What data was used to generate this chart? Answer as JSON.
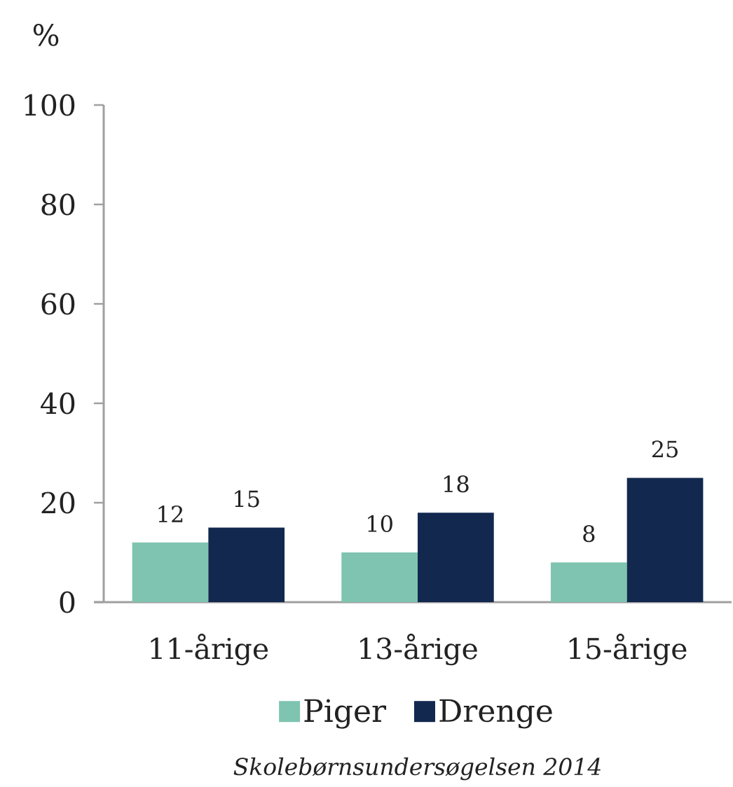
{
  "chart_data": {
    "type": "bar",
    "ylabel": "%",
    "categories": [
      "11-årige",
      "13-årige",
      "15-årige"
    ],
    "series": [
      {
        "name": "Piger",
        "color": "#7fc4b0",
        "values": [
          12,
          10,
          8
        ]
      },
      {
        "name": "Drenge",
        "color": "#12284f",
        "values": [
          15,
          18,
          25
        ]
      }
    ],
    "ylim": [
      0,
      100
    ],
    "yticks": [
      0,
      20,
      40,
      60,
      80,
      100
    ],
    "data_labels": true,
    "legend": "bottom",
    "annotations": [
      "Skolebørnsundersøgelsen 2014"
    ]
  }
}
